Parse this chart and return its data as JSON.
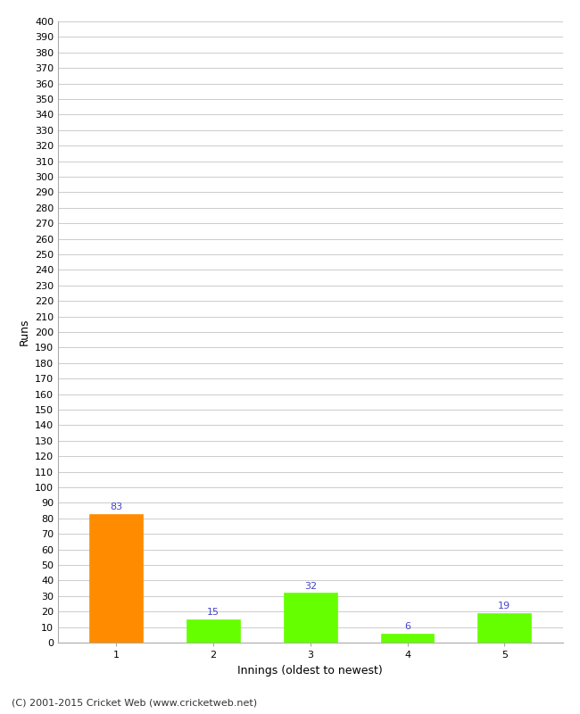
{
  "categories": [
    "1",
    "2",
    "3",
    "4",
    "5"
  ],
  "values": [
    83,
    15,
    32,
    6,
    19
  ],
  "bar_colors": [
    "#ff8c00",
    "#66ff00",
    "#66ff00",
    "#66ff00",
    "#66ff00"
  ],
  "xlabel": "Innings (oldest to newest)",
  "ylabel": "Runs",
  "ylim": [
    0,
    400
  ],
  "ytick_step": 10,
  "label_color": "#4444cc",
  "label_fontsize": 8,
  "axis_label_fontsize": 9,
  "tick_fontsize": 8,
  "footer_text": "(C) 2001-2015 Cricket Web (www.cricketweb.net)",
  "footer_fontsize": 8,
  "background_color": "#ffffff",
  "grid_color": "#cccccc",
  "bar_width": 0.55
}
